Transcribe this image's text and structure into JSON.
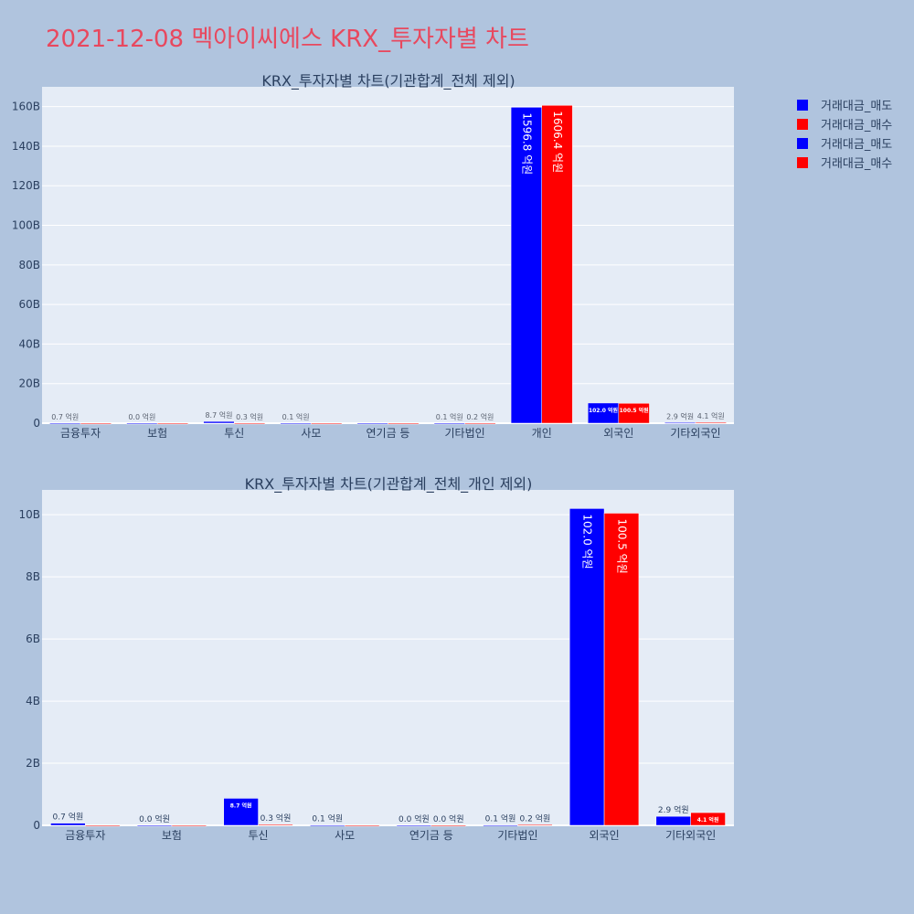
{
  "page": {
    "title": "2021-12-08 멕아이씨에스 KRX_투자자별 차트"
  },
  "legend": {
    "items": [
      {
        "label": "거래대금_매도",
        "color": "#0000ff"
      },
      {
        "label": "거래대금_매수",
        "color": "#ff0000"
      },
      {
        "label": "거래대금_매도",
        "color": "#0000ff"
      },
      {
        "label": "거래대금_매수",
        "color": "#ff0000"
      }
    ]
  },
  "chart_data": [
    {
      "type": "bar",
      "title": "KRX_투자자별 차트(기관합계_전체 제외)",
      "categories": [
        "금융투자",
        "보험",
        "투신",
        "사모",
        "연기금 등",
        "기타법인",
        "개인",
        "외국인",
        "기타외국인"
      ],
      "yticks": [
        "0",
        "20B",
        "40B",
        "60B",
        "80B",
        "100B",
        "120B",
        "140B",
        "160B"
      ],
      "ylim": [
        0,
        170000000000
      ],
      "grid": true,
      "series": [
        {
          "name": "거래대금_매도",
          "color": "#0000ff",
          "values": [
            70000000,
            0,
            870000000,
            10000000,
            0,
            10000000,
            159680000000,
            10200000000,
            290000000
          ],
          "labels": [
            "0.7 억원",
            "0.0 억원",
            "8.7 억원",
            "0.1 억원",
            "",
            "0.1 억원",
            "1596.8 억원",
            "102.0 억원",
            "2.9 억원"
          ]
        },
        {
          "name": "거래대금_매수",
          "color": "#ff0000",
          "values": [
            0,
            0,
            30000000,
            0,
            0,
            20000000,
            160640000000,
            10050000000,
            410000000
          ],
          "labels": [
            "",
            "",
            "0.3 억원",
            "",
            "",
            "0.2 억원",
            "1606.4 억원",
            "100.5 억원",
            "4.1 억원"
          ]
        }
      ]
    },
    {
      "type": "bar",
      "title": "KRX_투자자별 차트(기관합계_전체_개인 제외)",
      "categories": [
        "금융투자",
        "보험",
        "투신",
        "사모",
        "연기금 등",
        "기타법인",
        "외국인",
        "기타외국인"
      ],
      "yticks": [
        "0",
        "2B",
        "4B",
        "6B",
        "8B",
        "10B"
      ],
      "ylim": [
        0,
        10800000000
      ],
      "grid": true,
      "series": [
        {
          "name": "거래대금_매도",
          "color": "#0000ff",
          "values": [
            70000000,
            0,
            870000000,
            10000000,
            0,
            10000000,
            10200000000,
            290000000
          ],
          "labels": [
            "0.7 억원",
            "0.0 억원",
            "8.7 억원",
            "0.1 억원",
            "0.0 억원",
            "0.1 억원",
            "102.0 억원",
            "2.9 억원"
          ]
        },
        {
          "name": "거래대금_매수",
          "color": "#ff0000",
          "values": [
            0,
            0,
            30000000,
            0,
            0,
            20000000,
            10050000000,
            410000000
          ],
          "labels": [
            "",
            "",
            "0.3 억원",
            "",
            "0.0 억원",
            "0.2 억원",
            "100.5 억원",
            "4.1 억원"
          ]
        }
      ]
    }
  ]
}
